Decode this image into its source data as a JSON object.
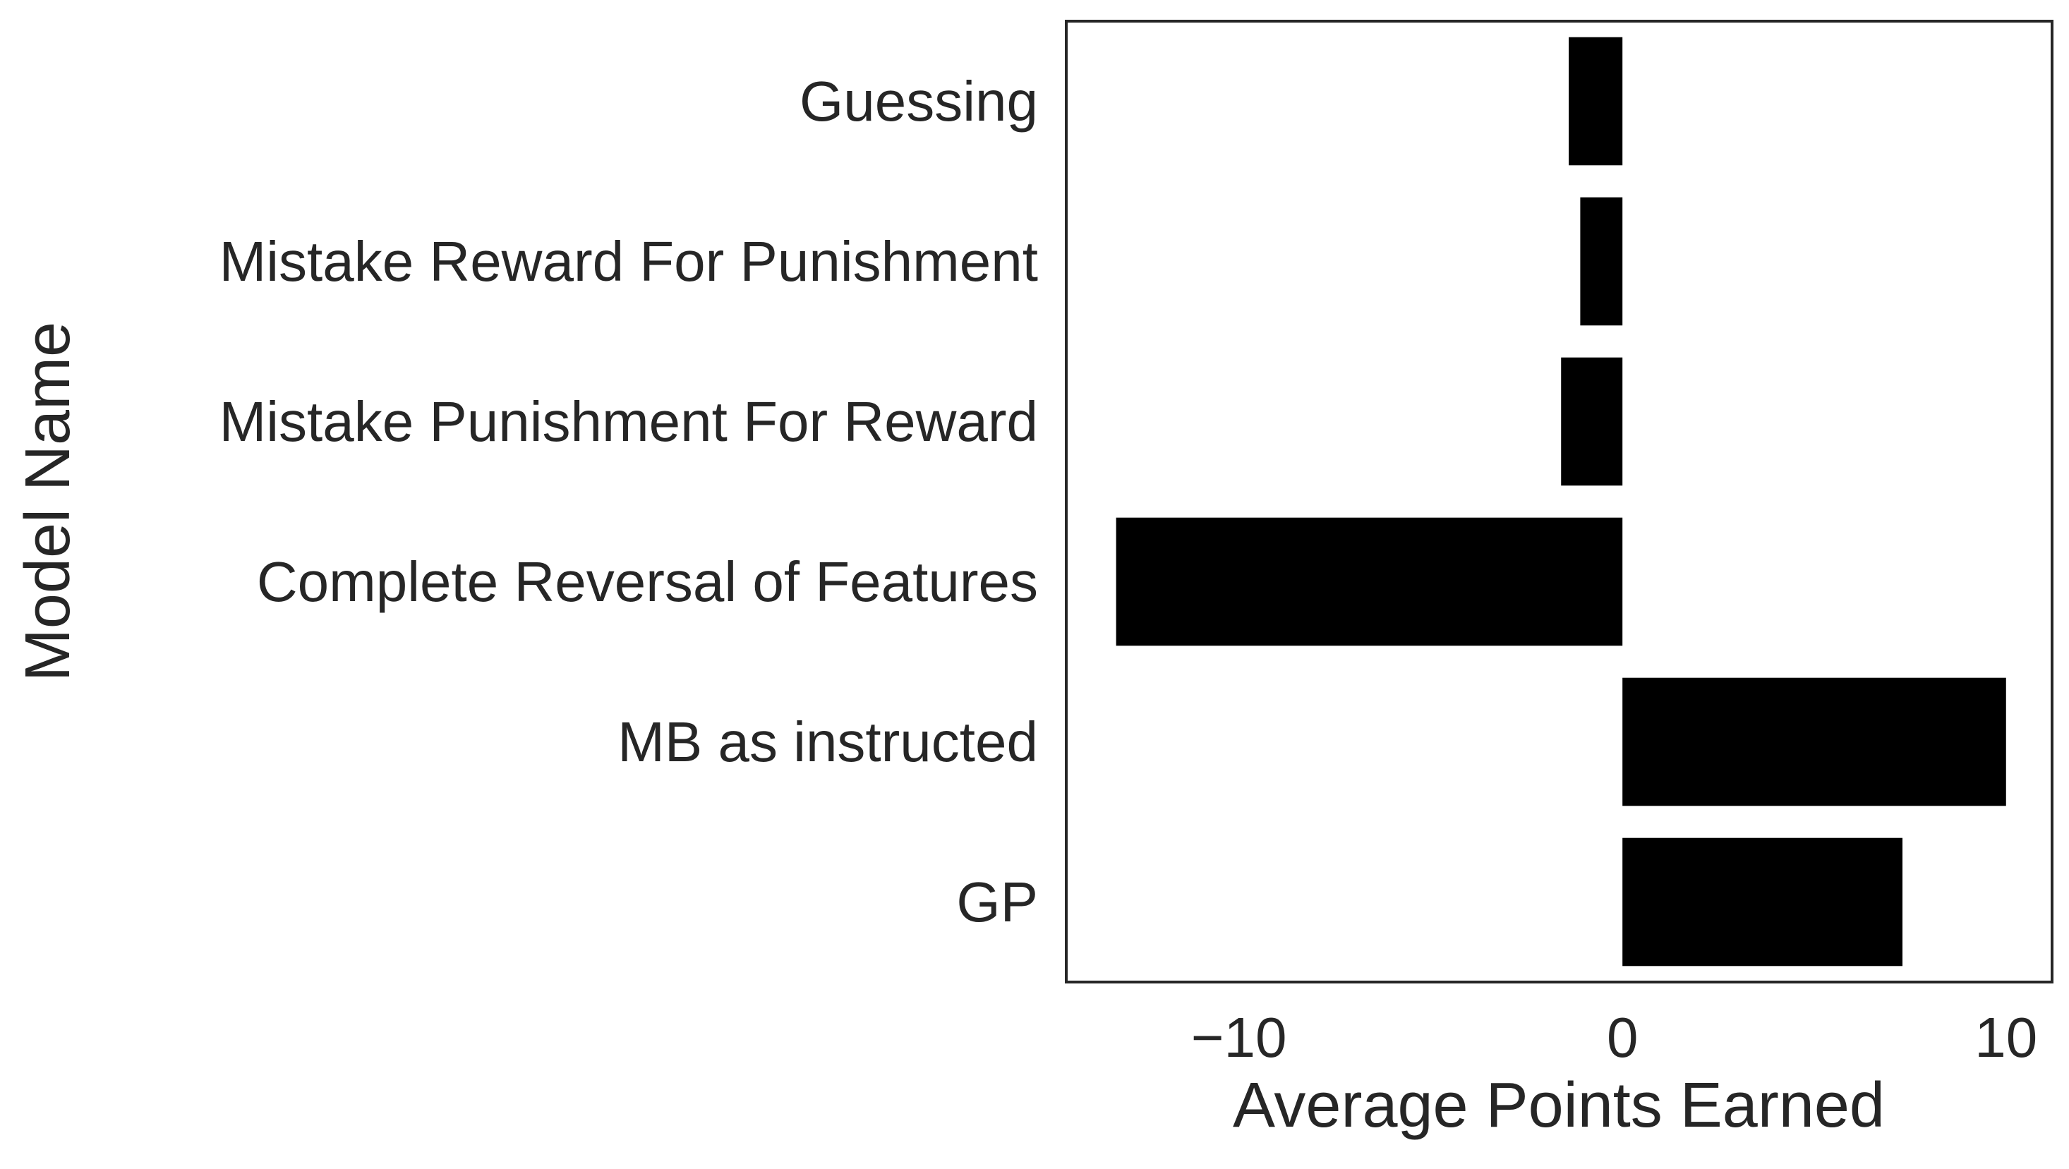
{
  "chart_data": {
    "type": "bar",
    "orientation": "horizontal",
    "title": "",
    "xlabel": "Average Points Earned",
    "ylabel": "Model Name",
    "categories": [
      "Guessing",
      "Mistake Reward For Punishment",
      "Mistake Punishment For Reward",
      "Complete Reversal of Features",
      "MB as instructed",
      "GP"
    ],
    "values": [
      -1.4,
      -1.1,
      -1.6,
      -13.2,
      10.0,
      7.3
    ],
    "xlim": [
      -14.5,
      11.2
    ],
    "xticks": [
      -10,
      0,
      10
    ],
    "xtick_labels": [
      "−10",
      "0",
      "10"
    ],
    "bar_color": "#000000",
    "text_color": "#262626",
    "frame_color": "#262626",
    "grid": false,
    "legend": "none"
  }
}
